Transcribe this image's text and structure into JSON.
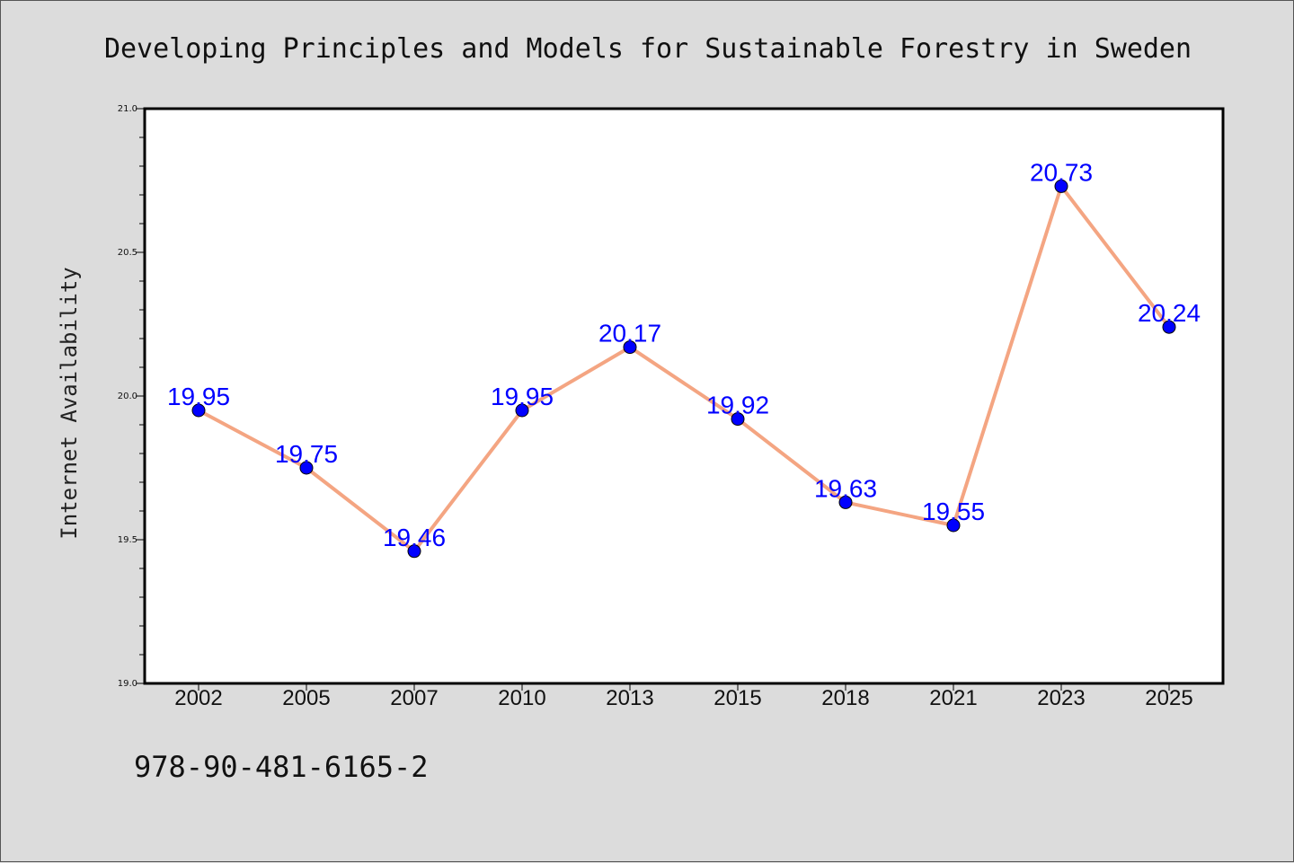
{
  "chart_data": {
    "type": "line",
    "title": "Developing Principles and Models for Sustainable Forestry in Sweden",
    "xlabel": "",
    "ylabel": "Internet Availability",
    "categories": [
      "2002",
      "2005",
      "2007",
      "2010",
      "2013",
      "2015",
      "2018",
      "2021",
      "2023",
      "2025"
    ],
    "series": [
      {
        "values": [
          19.95,
          19.75,
          19.46,
          19.95,
          20.17,
          19.92,
          19.63,
          19.55,
          20.73,
          20.24
        ]
      }
    ],
    "data_labels": [
      "19.95",
      "19.75",
      "19.46",
      "19.95",
      "20.17",
      "19.92",
      "19.63",
      "19.55",
      "20.73",
      "20.24"
    ],
    "ylim": [
      19.0,
      21.0
    ],
    "yticks": [
      19.0,
      19.5,
      20.0,
      20.5,
      21.0
    ],
    "ytick_labels": [
      "19.0",
      "19.5",
      "20.0",
      "20.5",
      "21.0"
    ],
    "grid": false,
    "legend": "none",
    "colors": {
      "line": "#f4a582",
      "marker": "#0000ff",
      "data_label": "#0000ff",
      "background": "#dcdcdc",
      "plot_background": "#ffffff"
    }
  },
  "footer": {
    "isbn": "978-90-481-6165-2"
  }
}
